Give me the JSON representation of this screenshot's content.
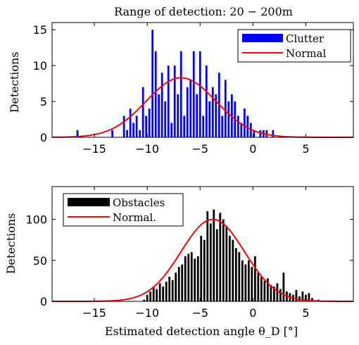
{
  "chart_data": [
    {
      "type": "bar",
      "title": "Range of detection: 20 − 200m",
      "xlabel": "",
      "ylabel": "Detections",
      "xlim": [
        -19,
        9.5
      ],
      "ylim": [
        0,
        16
      ],
      "xticks": [
        -15,
        -10,
        -5,
        0,
        5
      ],
      "yticks": [
        0,
        5,
        10,
        15
      ],
      "grid": false,
      "legend_position": "top-right",
      "bar_color": "#0000ff",
      "series": [
        {
          "name": "Clutter",
          "kind": "bar",
          "x": [
            -16.6,
            -13.3,
            -12.2,
            -11.9,
            -11.6,
            -11.3,
            -11.0,
            -10.7,
            -10.4,
            -10.1,
            -9.8,
            -9.5,
            -9.2,
            -8.9,
            -8.6,
            -8.3,
            -8.0,
            -7.7,
            -7.4,
            -7.1,
            -6.8,
            -6.5,
            -6.2,
            -5.9,
            -5.6,
            -5.3,
            -5.0,
            -4.7,
            -4.4,
            -4.1,
            -3.8,
            -3.5,
            -3.2,
            -2.9,
            -2.6,
            -2.3,
            -2.0,
            -1.7,
            -1.4,
            -1.1,
            -0.8,
            -0.5,
            -0.2,
            0.1,
            0.7,
            1.0,
            1.3,
            1.9
          ],
          "values": [
            1,
            1,
            3,
            1,
            4,
            2,
            3,
            1,
            7,
            3,
            4,
            15,
            12,
            6,
            9,
            5,
            10,
            2,
            10,
            6,
            12,
            3,
            7,
            8,
            12,
            6,
            12,
            3,
            10,
            5,
            7,
            6,
            9,
            3,
            8,
            5,
            6,
            5,
            3,
            2,
            4,
            3,
            2,
            1,
            1,
            1,
            1,
            1
          ]
        },
        {
          "name": "Normal",
          "kind": "line",
          "color": "#ff0000",
          "mean": -6.8,
          "std": 3.3,
          "peak": 8.3
        }
      ]
    },
    {
      "type": "bar",
      "title": "",
      "xlabel": "Estimated detection angle θ_D [°]",
      "ylabel": "Detections",
      "xlim": [
        -19,
        9.5
      ],
      "ylim": [
        0,
        140
      ],
      "xticks": [
        -15,
        -10,
        -5,
        0,
        5
      ],
      "yticks": [
        0,
        50,
        100
      ],
      "grid": false,
      "legend_position": "top-left",
      "bar_color": "#000000",
      "series": [
        {
          "name": "Obstacles",
          "kind": "bar",
          "x": [
            -10.3,
            -10.0,
            -9.7,
            -9.4,
            -9.1,
            -8.8,
            -8.5,
            -8.2,
            -7.9,
            -7.6,
            -7.3,
            -7.0,
            -6.7,
            -6.4,
            -6.1,
            -5.8,
            -5.5,
            -5.2,
            -4.9,
            -4.6,
            -4.3,
            -4.0,
            -3.7,
            -3.4,
            -3.1,
            -2.8,
            -2.5,
            -2.2,
            -1.9,
            -1.6,
            -1.3,
            -1.0,
            -0.7,
            -0.4,
            -0.1,
            0.2,
            0.5,
            0.8,
            1.1,
            1.4,
            1.7,
            2.0,
            2.3,
            2.6,
            2.9,
            3.2,
            3.5,
            3.8,
            4.1,
            4.4,
            4.7,
            5.0,
            5.3,
            5.6,
            6.2
          ],
          "values": [
            2,
            8,
            12,
            18,
            15,
            22,
            18,
            24,
            30,
            26,
            35,
            42,
            45,
            55,
            58,
            60,
            52,
            55,
            80,
            75,
            110,
            95,
            112,
            88,
            108,
            100,
            92,
            80,
            75,
            65,
            60,
            50,
            45,
            50,
            42,
            55,
            35,
            30,
            25,
            28,
            20,
            18,
            22,
            15,
            35,
            12,
            10,
            8,
            14,
            6,
            12,
            8,
            10,
            4,
            2
          ]
        },
        {
          "name": "Normal.",
          "kind": "line",
          "color": "#ff0000",
          "mean": -3.8,
          "std": 3.0,
          "peak": 100
        }
      ]
    }
  ]
}
